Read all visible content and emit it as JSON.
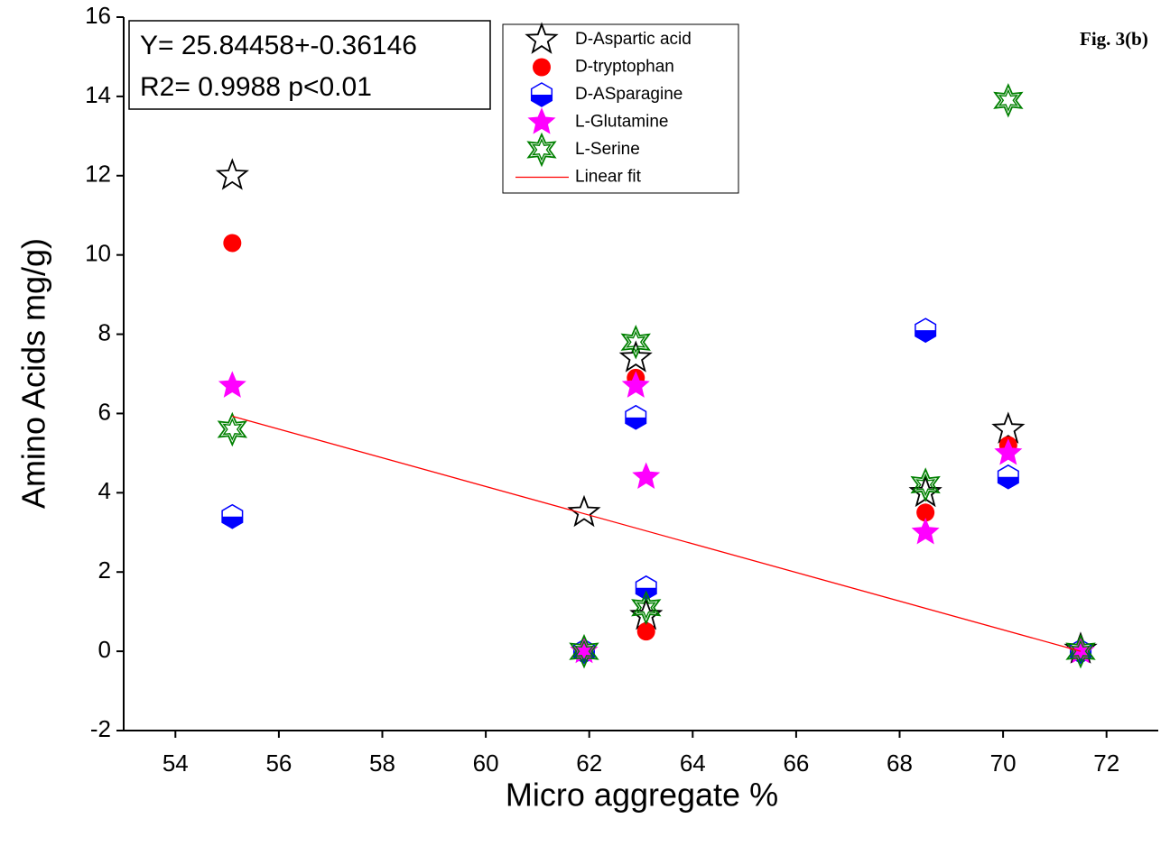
{
  "chart_data": {
    "type": "scatter",
    "figure_label": "Fig. 3(b)",
    "annotation": [
      "Y= 25.84458+-0.36146",
      "R2= 0.9988 p<0.01"
    ],
    "xlabel": "Micro aggregate %",
    "ylabel": "Amino Acids mg/g)",
    "xlim": [
      53,
      73
    ],
    "ylim": [
      -2,
      16
    ],
    "xticks": [
      54,
      56,
      58,
      60,
      62,
      64,
      66,
      68,
      70,
      72
    ],
    "yticks": [
      -2,
      0,
      2,
      4,
      6,
      8,
      10,
      12,
      14,
      16
    ],
    "legend": "top-center",
    "series": [
      {
        "name": "D-Aspartic acid",
        "color": "#000000",
        "marker": "star-open",
        "x": [
          55.1,
          61.9,
          62.9,
          63.1,
          68.5,
          70.1,
          71.5
        ],
        "values": [
          12,
          3.5,
          7.4,
          0.9,
          4,
          5.6,
          0.05
        ]
      },
      {
        "name": "D-tryptophan",
        "color": "#ff0000",
        "marker": "circle",
        "x": [
          55.1,
          61.9,
          62.9,
          63.1,
          68.5,
          70.1,
          71.5
        ],
        "values": [
          10.3,
          0,
          6.9,
          0.5,
          3.5,
          5.2,
          0
        ]
      },
      {
        "name": "D-ASparagine",
        "color": "#0000ff",
        "marker": "hexagon-half",
        "x": [
          55.1,
          61.9,
          62.9,
          63.1,
          68.5,
          70.1,
          71.5
        ],
        "values": [
          3.4,
          0,
          5.9,
          1.6,
          8.1,
          4.4,
          0
        ]
      },
      {
        "name": "L-Glutamine",
        "color": "#ff00ff",
        "marker": "star-filled",
        "x": [
          55.1,
          61.9,
          62.9,
          63.1,
          68.5,
          70.1,
          71.5
        ],
        "values": [
          6.7,
          0,
          6.7,
          4.4,
          3.0,
          5.0,
          0
        ]
      },
      {
        "name": "L-Serine",
        "color": "#008000",
        "marker": "hexagram",
        "x": [
          55.1,
          61.9,
          62.9,
          63.1,
          68.5,
          70.1,
          71.5
        ],
        "values": [
          5.6,
          0,
          7.8,
          1.1,
          4.2,
          13.9,
          0
        ]
      },
      {
        "name": "Linear fit",
        "color": "#ff0000",
        "marker": "line",
        "x": [
          55.1,
          71.5
        ],
        "values": [
          5.93,
          0.0
        ]
      }
    ]
  }
}
